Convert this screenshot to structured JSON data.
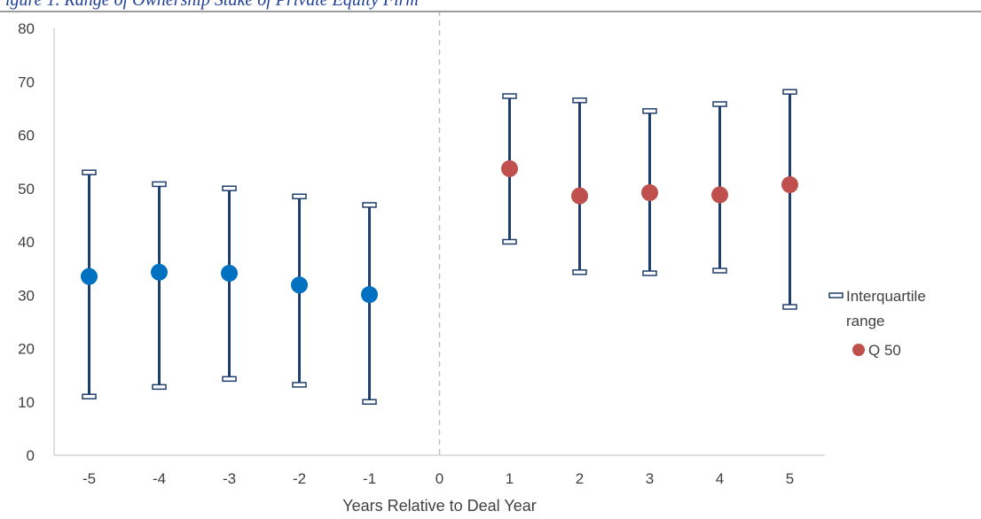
{
  "header": {
    "caption_fragment": "igure 1. Range of Ownership Stake of Private Equity Firm"
  },
  "chart_data": {
    "type": "scatter",
    "title": "",
    "xlabel": "Years Relative to Deal Year",
    "ylabel": "",
    "x_ticks": [
      -5,
      -4,
      -3,
      -2,
      -1,
      0,
      1,
      2,
      3,
      4,
      5
    ],
    "y_ticks": [
      0,
      10,
      20,
      30,
      40,
      50,
      60,
      70,
      80
    ],
    "ylim": [
      0,
      80
    ],
    "xlim": [
      -5.5,
      5.5
    ],
    "reference_line": {
      "x": 0,
      "style": "dashed"
    },
    "legend_position": "right",
    "legend": {
      "interquartile_label_line1": "Interquartile",
      "interquartile_label_line2": "range",
      "median_label": "Q 50"
    },
    "points": [
      {
        "x": -5,
        "median": 33.5,
        "q25": 11.0,
        "q75": 53.0
      },
      {
        "x": -4,
        "median": 34.3,
        "q25": 12.8,
        "q75": 50.8
      },
      {
        "x": -3,
        "median": 34.1,
        "q25": 14.3,
        "q75": 50.0
      },
      {
        "x": -2,
        "median": 31.9,
        "q25": 13.2,
        "q75": 48.5
      },
      {
        "x": -1,
        "median": 30.1,
        "q25": 10.0,
        "q75": 46.9
      },
      {
        "x": 1,
        "median": 53.7,
        "q25": 40.0,
        "q75": 67.3
      },
      {
        "x": 2,
        "median": 48.6,
        "q25": 34.3,
        "q75": 66.5
      },
      {
        "x": 3,
        "median": 49.2,
        "q25": 34.1,
        "q75": 64.5
      },
      {
        "x": 4,
        "median": 48.8,
        "q25": 34.6,
        "q75": 65.8
      },
      {
        "x": 5,
        "median": 50.7,
        "q25": 27.8,
        "q75": 68.1
      }
    ],
    "colors": {
      "whisker": "#1f3f6f",
      "median_pre": "#0070c0",
      "median_post": "#c0504d",
      "axis": "#bfbfbf",
      "reference_line": "#bfbfbf"
    }
  }
}
